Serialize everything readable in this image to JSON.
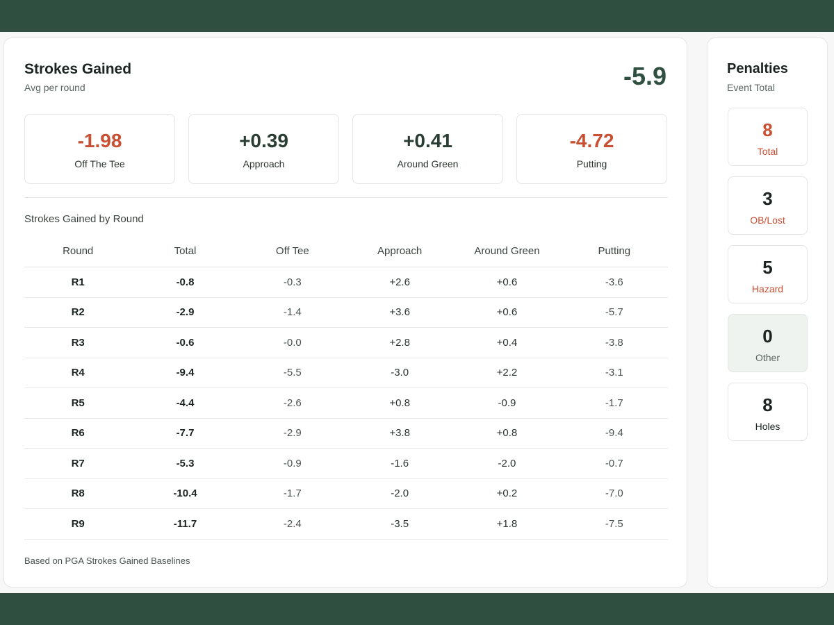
{
  "strokes_gained": {
    "title": "Strokes Gained",
    "subtitle": "Avg per round",
    "total": "-5.9",
    "metrics": [
      {
        "value": "-1.98",
        "label": "Off The Tee"
      },
      {
        "value": "+0.39",
        "label": "Approach"
      },
      {
        "value": "+0.41",
        "label": "Around Green"
      },
      {
        "value": "-4.72",
        "label": "Putting"
      }
    ]
  },
  "by_round": {
    "title": "Strokes Gained by Round",
    "columns": [
      "Round",
      "Total",
      "Off Tee",
      "Approach",
      "Around Green",
      "Putting"
    ],
    "rows": [
      [
        "R1",
        "-0.8",
        "-0.3",
        "+2.6",
        "+0.6",
        "-3.6"
      ],
      [
        "R2",
        "-2.9",
        "-1.4",
        "+3.6",
        "+0.6",
        "-5.7"
      ],
      [
        "R3",
        "-0.6",
        "-0.0",
        "+2.8",
        "+0.4",
        "-3.8"
      ],
      [
        "R4",
        "-9.4",
        "-5.5",
        "-3.0",
        "+2.2",
        "-3.1"
      ],
      [
        "R5",
        "-4.4",
        "-2.6",
        "+0.8",
        "-0.9",
        "-1.7"
      ],
      [
        "R6",
        "-7.7",
        "-2.9",
        "+3.8",
        "+0.8",
        "-9.4"
      ],
      [
        "R7",
        "-5.3",
        "-0.9",
        "-1.6",
        "-2.0",
        "-0.7"
      ],
      [
        "R8",
        "-10.4",
        "-1.7",
        "-2.0",
        "+0.2",
        "-7.0"
      ],
      [
        "R9",
        "-11.7",
        "-2.4",
        "-3.5",
        "+1.8",
        "-7.5"
      ]
    ],
    "footnote": "Based on PGA Strokes Gained Baselines"
  },
  "penalties": {
    "title": "Penalties",
    "subtitle": "Event Total",
    "items": [
      {
        "value": "8",
        "label": "Total"
      },
      {
        "value": "3",
        "label": "OB/Lost"
      },
      {
        "value": "5",
        "label": "Hazard"
      },
      {
        "value": "0",
        "label": "Other"
      },
      {
        "value": "8",
        "label": "Holes"
      }
    ]
  },
  "colors": {
    "frame": "#2f4f40",
    "negative": "#c94f33",
    "positive": "#2a3d33"
  }
}
